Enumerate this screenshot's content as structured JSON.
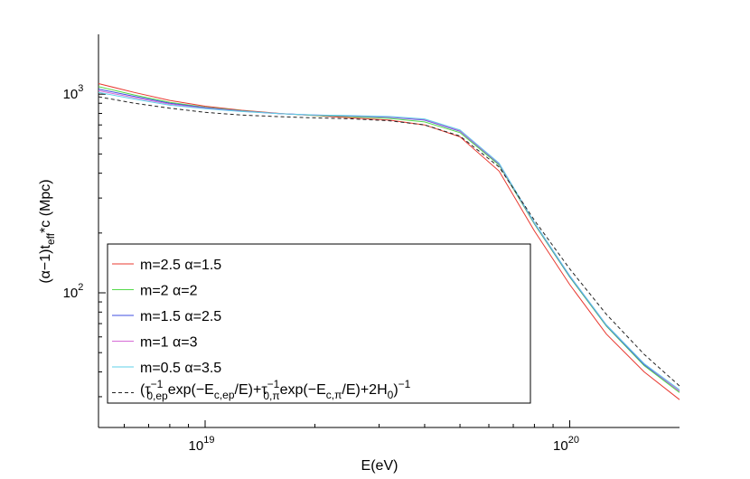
{
  "chart_data": {
    "type": "line",
    "xlabel": "E(eV)",
    "ylabel_parts": {
      "pre": "(α−1)t",
      "sub": "eff",
      "post": "*c (Mpc)"
    },
    "x_scale": "log",
    "y_scale": "log",
    "xlim": [
      5.1e+18,
      2e+20
    ],
    "ylim": [
      21,
      2000
    ],
    "x_ticks": [
      {
        "value": 1e+19,
        "base": "10",
        "exp": "19"
      },
      {
        "value": 1e+20,
        "base": "10",
        "exp": "20"
      }
    ],
    "y_ticks": [
      {
        "value": 100,
        "base": "10",
        "exp": "2"
      },
      {
        "value": 1000,
        "base": "10",
        "exp": "3"
      }
    ],
    "grid": false,
    "legend_position": "bottom-left",
    "x": [
      5.1e+18,
      6.4e+18,
      8e+18,
      1e+19,
      1.26e+19,
      1.6e+19,
      2e+19,
      2.5e+19,
      3.2e+19,
      4e+19,
      5e+19,
      6.4e+19,
      8e+19,
      1e+20,
      1.26e+20,
      1.6e+20,
      2e+20
    ],
    "series": [
      {
        "name": "m=2.5 α=1.5",
        "color": "#e8382f",
        "dash": false,
        "values": [
          1130,
          1020,
          930,
          870,
          830,
          800,
          780,
          760,
          740,
          700,
          610,
          410,
          205,
          110,
          62,
          40,
          29
        ]
      },
      {
        "name": "m=2 α=2",
        "color": "#55d94a",
        "dash": false,
        "values": [
          1090,
          990,
          910,
          860,
          825,
          798,
          782,
          770,
          755,
          725,
          640,
          440,
          222,
          120,
          68,
          43,
          31.5
        ]
      },
      {
        "name": "m=1.5 α=2.5",
        "color": "#3f4fe0",
        "dash": false,
        "values": [
          1060,
          975,
          900,
          855,
          822,
          798,
          784,
          776,
          765,
          740,
          650,
          445,
          224,
          121,
          68.5,
          43.5,
          32
        ]
      },
      {
        "name": "m=1 α=3",
        "color": "#d66bd6",
        "dash": false,
        "values": [
          1040,
          960,
          890,
          850,
          820,
          797,
          785,
          778,
          768,
          745,
          654,
          447,
          225,
          122,
          69,
          44,
          32
        ]
      },
      {
        "name": "m=0.5 α=3.5",
        "color": "#5fd0ea",
        "dash": false,
        "values": [
          1020,
          945,
          880,
          845,
          818,
          797,
          786,
          780,
          772,
          750,
          660,
          450,
          226,
          122,
          69,
          44,
          32.5
        ]
      },
      {
        "name": "(τ0,ep−1exp(−Ec,ep/E)+τ0,π−1exp(−Ec,π/E)+2H0)−1",
        "color": "#222222",
        "dash": true,
        "values": [
          970,
          900,
          850,
          810,
          785,
          770,
          760,
          752,
          735,
          700,
          615,
          430,
          232,
          132,
          78,
          49,
          34
        ]
      }
    ],
    "legend": {
      "entries": [
        {
          "text": "m=2.5 α=1.5"
        },
        {
          "text": "m=2 α=2"
        },
        {
          "text": "m=1.5 α=2.5"
        },
        {
          "text": "m=1 α=3"
        },
        {
          "text": "m=0.5 α=3.5"
        },
        {
          "formula": {
            "open": "(τ",
            "s1": "0,ep",
            "e1": "−1",
            "t2": "exp(−E",
            "s2": "c,ep",
            "t3": "/E)+τ",
            "s3": "0,π",
            "e3": "−1",
            "t4": "exp(−E",
            "s4": "c,π",
            "t5": "/E)+2H",
            "s5": "0",
            "t6": ")",
            "e6": "−1"
          }
        }
      ]
    }
  }
}
